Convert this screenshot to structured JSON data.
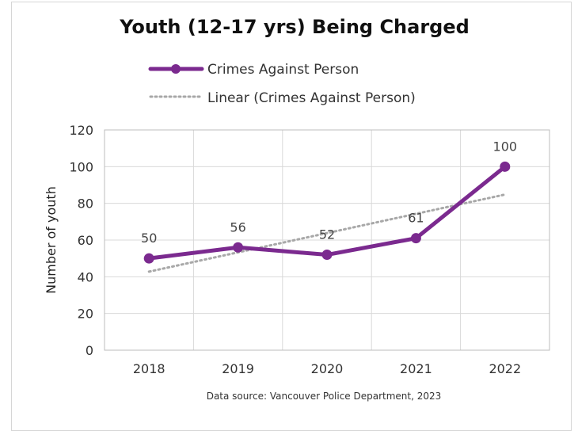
{
  "chart_data": {
    "type": "line",
    "title": "Youth (12-17 yrs) Being Charged",
    "xlabel": "",
    "ylabel": "Number of youth",
    "categories": [
      "2018",
      "2019",
      "2020",
      "2021",
      "2022"
    ],
    "series": [
      {
        "name": "Crimes Against Person",
        "values": [
          50,
          56,
          52,
          61,
          100
        ],
        "color": "#7b2a8f"
      }
    ],
    "trendline": {
      "name": "Linear (Crimes Against Person)",
      "start": 42.8,
      "end": 84.8,
      "color": "#a8a8a8",
      "style": "dotted"
    },
    "ylim": [
      0,
      120
    ],
    "yticks": [
      "0",
      "20",
      "40",
      "60",
      "80",
      "100",
      "120"
    ],
    "grid": true,
    "legend_position": "top",
    "source": "Data source: Vancouver Police Department, 2023"
  }
}
